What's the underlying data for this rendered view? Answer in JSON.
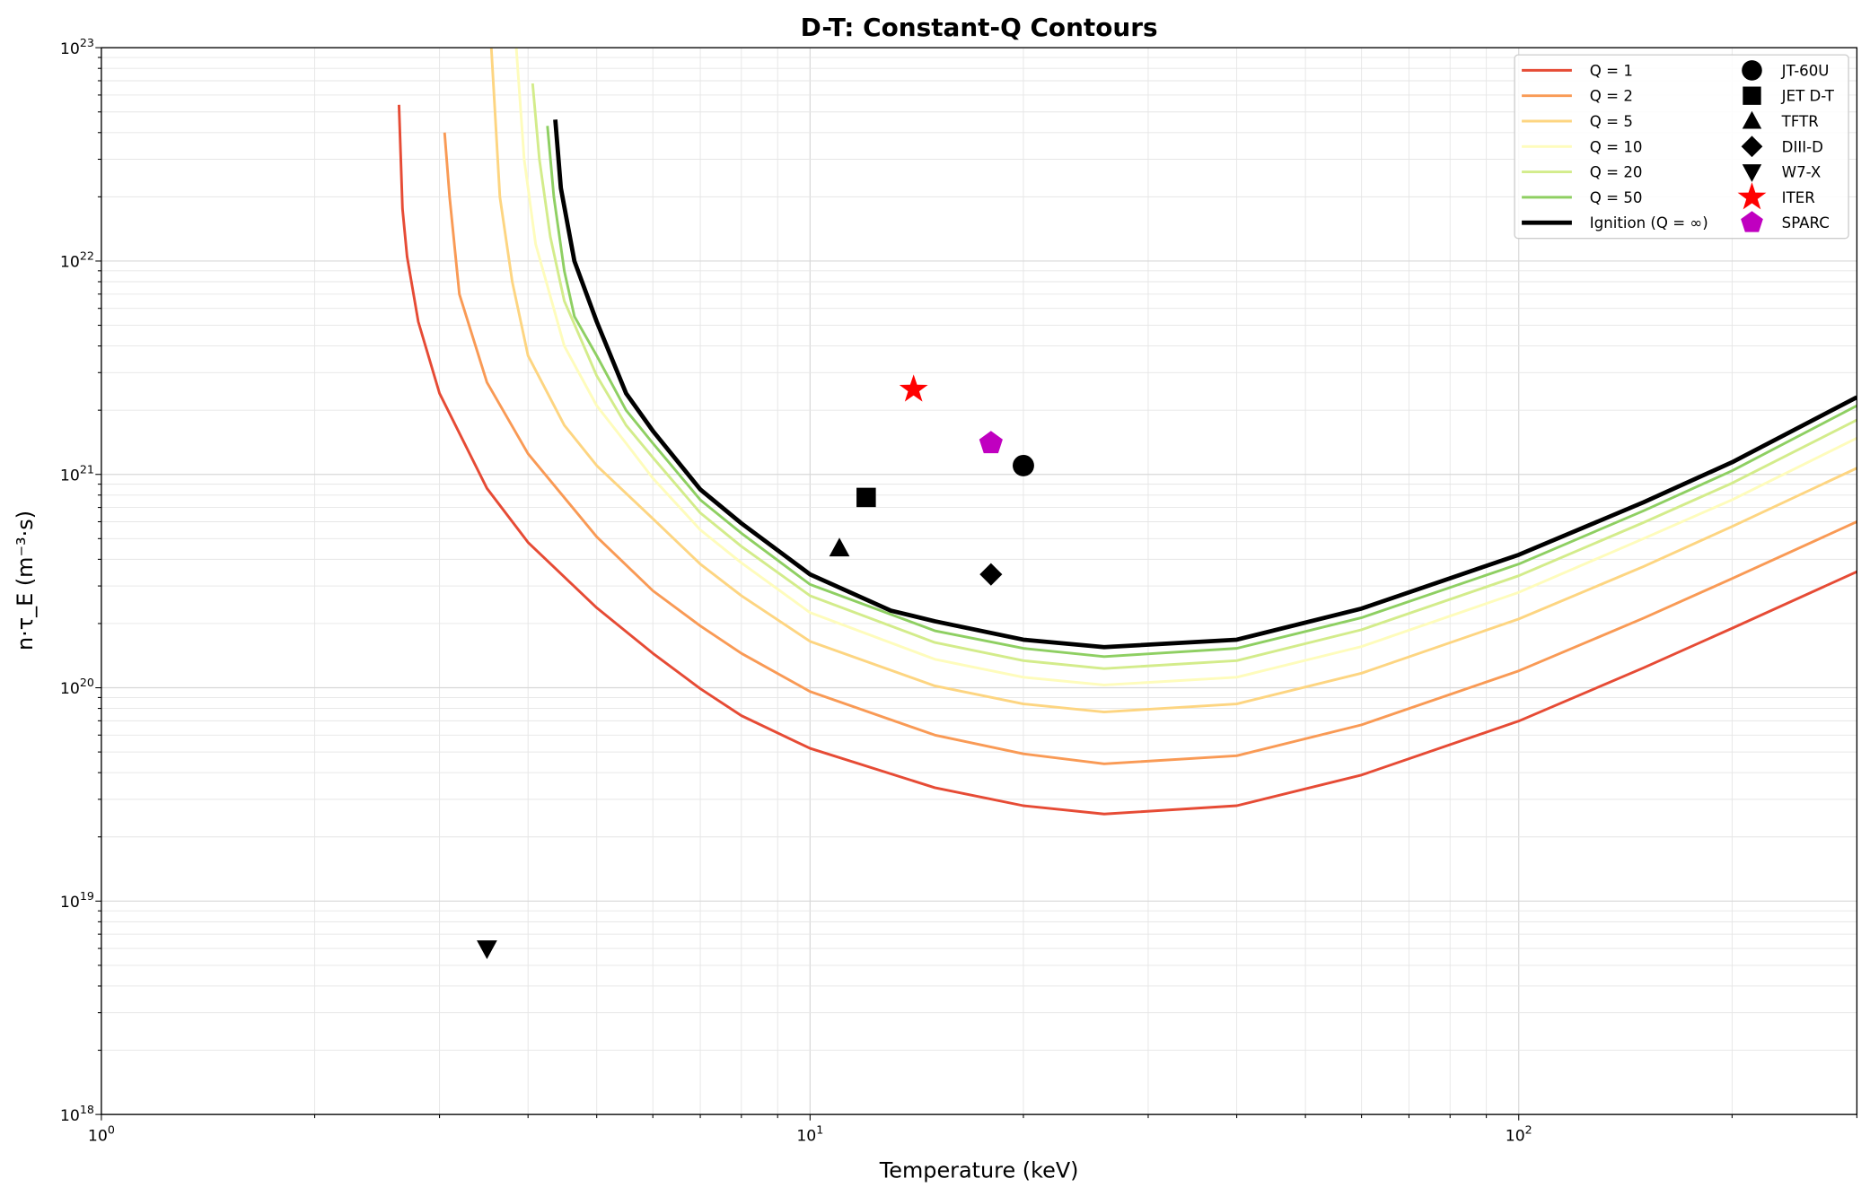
{
  "chart_data": {
    "type": "line",
    "title": "D-T: Constant-Q Contours",
    "xlabel": "Temperature (keV)",
    "ylabel": "n·τ_E (m⁻³·s)",
    "xscale": "log",
    "yscale": "log",
    "xlim": [
      1,
      300
    ],
    "ylim": [
      1e+18,
      1e+23
    ],
    "grid": "major and minor",
    "legend_placement": "top-right",
    "x_ticks": [
      {
        "value": 1,
        "label": "10^0"
      },
      {
        "value": 10,
        "label": "10^1"
      },
      {
        "value": 100,
        "label": "10^2"
      }
    ],
    "y_ticks": [
      {
        "value": 1e+18,
        "label": "10^18"
      },
      {
        "value": 1e+19,
        "label": "10^19"
      },
      {
        "value": 1e+20,
        "label": "10^20"
      },
      {
        "value": 1e+21,
        "label": "10^21"
      },
      {
        "value": 1e+22,
        "label": "10^22"
      },
      {
        "value": 1e+23,
        "label": "10^23"
      }
    ],
    "series": [
      {
        "name": "Q = 1",
        "color": "#e64b35",
        "points": [
          [
            2.63,
            5.4e+22
          ],
          [
            2.66,
            1.76e+22
          ],
          [
            2.7,
            1.05e+22
          ],
          [
            2.8,
            5.2e+21
          ],
          [
            3,
            2.4e+21
          ],
          [
            3.5,
            8.6e+20
          ],
          [
            4,
            4.8e+20
          ],
          [
            5,
            2.37e+20
          ],
          [
            6,
            1.45e+20
          ],
          [
            7,
            9.9e+19
          ],
          [
            8,
            7.4e+19
          ],
          [
            10,
            5.2e+19
          ],
          [
            15,
            3.4e+19
          ],
          [
            20,
            2.8e+19
          ],
          [
            26,
            2.56e+19
          ],
          [
            40,
            2.8e+19
          ],
          [
            60,
            3.9e+19
          ],
          [
            100,
            6.98e+19
          ],
          [
            150,
            1.24e+20
          ],
          [
            200,
            1.9e+20
          ],
          [
            300,
            3.5e+20
          ]
        ]
      },
      {
        "name": "Q = 2",
        "color": "#f99a55",
        "points": [
          [
            3.05,
            4e+22
          ],
          [
            3.1,
            2e+22
          ],
          [
            3.2,
            7e+21
          ],
          [
            3.5,
            2.7e+21
          ],
          [
            4,
            1.25e+21
          ],
          [
            5,
            5.1e+20
          ],
          [
            6,
            2.85e+20
          ],
          [
            7,
            1.95e+20
          ],
          [
            8,
            1.45e+20
          ],
          [
            10,
            9.6e+19
          ],
          [
            15,
            6e+19
          ],
          [
            20,
            4.9e+19
          ],
          [
            26,
            4.4e+19
          ],
          [
            40,
            4.8e+19
          ],
          [
            60,
            6.7e+19
          ],
          [
            100,
            1.2e+20
          ],
          [
            150,
            2.12e+20
          ],
          [
            200,
            3.25e+20
          ],
          [
            300,
            6e+20
          ]
        ]
      },
      {
        "name": "Q = 5",
        "color": "#fdd581",
        "points": [
          [
            3.55,
            1e+23
          ],
          [
            3.65,
            2e+22
          ],
          [
            3.8,
            8e+21
          ],
          [
            4,
            3.6e+21
          ],
          [
            4.5,
            1.7e+21
          ],
          [
            5,
            1.1e+21
          ],
          [
            6,
            6.2e+20
          ],
          [
            7,
            3.8e+20
          ],
          [
            8,
            2.7e+20
          ],
          [
            10,
            1.65e+20
          ],
          [
            15,
            1.02e+20
          ],
          [
            20,
            8.4e+19
          ],
          [
            26,
            7.7e+19
          ],
          [
            40,
            8.4e+19
          ],
          [
            60,
            1.17e+20
          ],
          [
            100,
            2.1e+20
          ],
          [
            150,
            3.7e+20
          ],
          [
            200,
            5.7e+20
          ],
          [
            300,
            1.07e+21
          ]
        ]
      },
      {
        "name": "Q = 10",
        "color": "#fefcbc",
        "points": [
          [
            3.85,
            1e+23
          ],
          [
            3.95,
            3e+22
          ],
          [
            4.1,
            1.2e+22
          ],
          [
            4.5,
            4e+21
          ],
          [
            5,
            2.1e+21
          ],
          [
            5.5,
            1.4e+21
          ],
          [
            6,
            9.6e+20
          ],
          [
            7,
            5.5e+20
          ],
          [
            8,
            3.85e+20
          ],
          [
            10,
            2.25e+20
          ],
          [
            15,
            1.36e+20
          ],
          [
            20,
            1.12e+20
          ],
          [
            26,
            1.03e+20
          ],
          [
            40,
            1.12e+20
          ],
          [
            60,
            1.56e+20
          ],
          [
            100,
            2.8e+20
          ],
          [
            150,
            5e+20
          ],
          [
            200,
            7.6e+20
          ],
          [
            300,
            1.48e+21
          ]
        ]
      },
      {
        "name": "Q = 20",
        "color": "#d3ec8b",
        "points": [
          [
            4.06,
            6.8e+22
          ],
          [
            4.15,
            3e+22
          ],
          [
            4.3,
            1.3e+22
          ],
          [
            4.5,
            6.5e+21
          ],
          [
            5,
            2.9e+21
          ],
          [
            5.5,
            1.7e+21
          ],
          [
            6,
            1.2e+21
          ],
          [
            7,
            6.6e+20
          ],
          [
            8,
            4.6e+20
          ],
          [
            10,
            2.7e+20
          ],
          [
            15,
            1.63e+20
          ],
          [
            20,
            1.34e+20
          ],
          [
            26,
            1.23e+20
          ],
          [
            40,
            1.34e+20
          ],
          [
            60,
            1.87e+20
          ],
          [
            100,
            3.35e+20
          ],
          [
            150,
            5.95e+20
          ],
          [
            200,
            9.1e+20
          ],
          [
            300,
            1.8e+21
          ]
        ]
      },
      {
        "name": "Q = 50",
        "color": "#8ecf62",
        "points": [
          [
            4.26,
            4.3e+22
          ],
          [
            4.35,
            2e+22
          ],
          [
            4.5,
            9e+21
          ],
          [
            4.65,
            5.5e+21
          ],
          [
            5,
            3.6e+21
          ],
          [
            5.5,
            2e+21
          ],
          [
            6,
            1.4e+21
          ],
          [
            7,
            7.6e+20
          ],
          [
            8,
            5.3e+20
          ],
          [
            10,
            3.05e+20
          ],
          [
            15,
            1.85e+20
          ],
          [
            20,
            1.53e+20
          ],
          [
            26,
            1.4e+20
          ],
          [
            40,
            1.53e+20
          ],
          [
            60,
            2.13e+20
          ],
          [
            100,
            3.8e+20
          ],
          [
            150,
            6.75e+20
          ],
          [
            200,
            1.04e+21
          ],
          [
            300,
            2.1e+21
          ]
        ]
      },
      {
        "name": "Ignition (Q = ∞)",
        "color": "#000000",
        "points": [
          [
            4.37,
            4.6e+22
          ],
          [
            4.45,
            2.2e+22
          ],
          [
            4.65,
            1e+22
          ],
          [
            5,
            5.2e+21
          ],
          [
            5.5,
            2.4e+21
          ],
          [
            6,
            1.6e+21
          ],
          [
            7,
            8.5e+20
          ],
          [
            8,
            5.9e+20
          ],
          [
            10,
            3.4e+20
          ],
          [
            13,
            2.3e+20
          ],
          [
            15,
            2.05e+20
          ],
          [
            20,
            1.68e+20
          ],
          [
            26,
            1.55e+20
          ],
          [
            40,
            1.68e+20
          ],
          [
            60,
            2.35e+20
          ],
          [
            100,
            4.2e+20
          ],
          [
            150,
            7.4e+20
          ],
          [
            200,
            1.14e+21
          ],
          [
            300,
            2.3e+21
          ]
        ]
      }
    ],
    "markers": [
      {
        "name": "JT-60U",
        "x": 20,
        "y": 1.1e+21,
        "shape": "circle",
        "color": "#000000"
      },
      {
        "name": "JET D-T",
        "x": 12,
        "y": 7.8e+20,
        "shape": "square",
        "color": "#000000"
      },
      {
        "name": "TFTR",
        "x": 11,
        "y": 4.5e+20,
        "shape": "triangle-up",
        "color": "#000000"
      },
      {
        "name": "DIII-D",
        "x": 18,
        "y": 3.4e+20,
        "shape": "diamond",
        "color": "#000000"
      },
      {
        "name": "W7-X",
        "x": 3.5,
        "y": 6e+18,
        "shape": "triangle-down",
        "color": "#000000"
      },
      {
        "name": "ITER",
        "x": 14,
        "y": 2.5e+21,
        "shape": "star",
        "color": "#ff0000"
      },
      {
        "name": "SPARC",
        "x": 18,
        "y": 1.4e+21,
        "shape": "pentagon",
        "color": "#c000c0"
      }
    ]
  }
}
